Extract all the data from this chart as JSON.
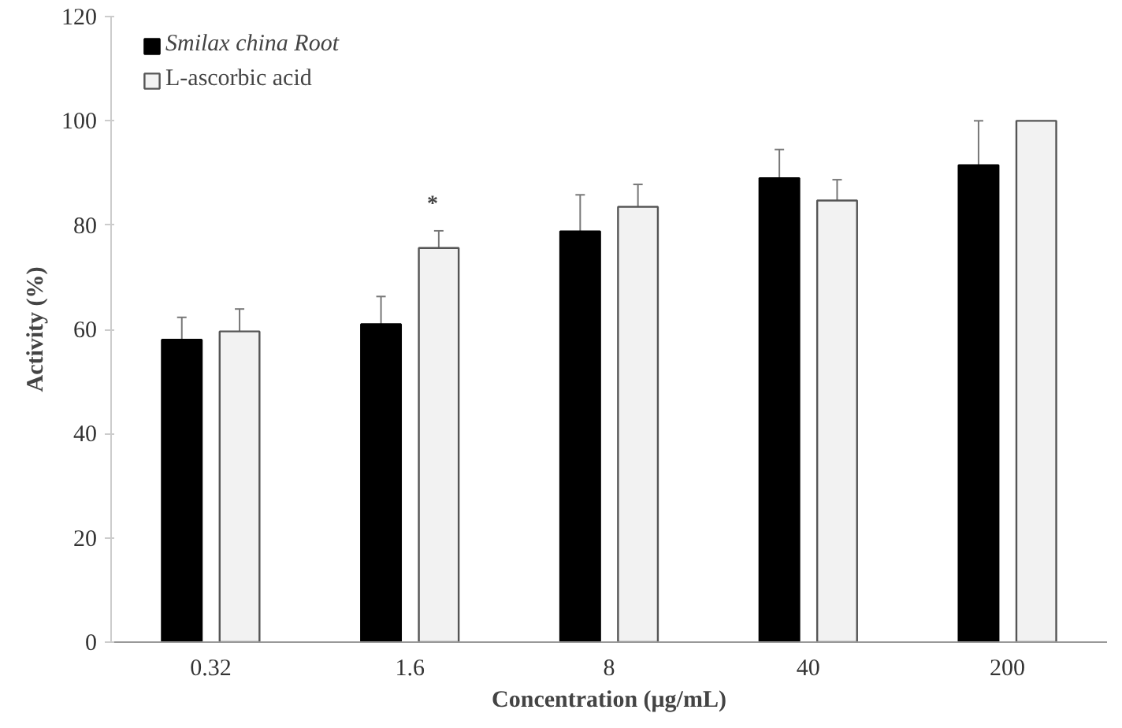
{
  "chart_data": {
    "type": "bar",
    "xlabel": "Concentration (μg/mL)",
    "ylabel": "Activity (%)",
    "categories": [
      "0.32",
      "1.6",
      "8",
      "40",
      "200"
    ],
    "series": [
      {
        "name": "Smilax china Root",
        "color": "#000000",
        "values": [
          58,
          61,
          78.8,
          89,
          91.5
        ],
        "errors": [
          4.3,
          5.3,
          7,
          5.5,
          8.5
        ]
      },
      {
        "name": "L-ascorbic acid",
        "color": "#f2f2f2",
        "values": [
          59.6,
          75.6,
          83.5,
          84.7,
          100
        ],
        "errors": [
          4.3,
          3.3,
          4.3,
          4,
          null
        ]
      }
    ],
    "ylim": [
      0,
      120
    ],
    "yticks": [
      0,
      20,
      40,
      60,
      80,
      100,
      120
    ],
    "grid": false,
    "legend": "top left",
    "annotations": [
      "*"
    ]
  }
}
